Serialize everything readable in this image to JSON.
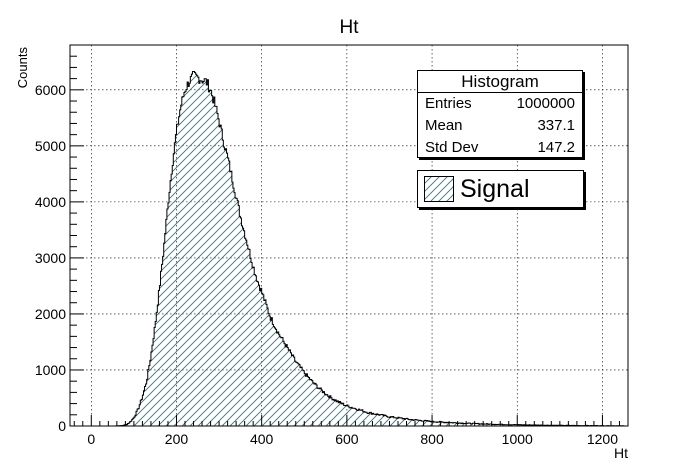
{
  "chart_data": {
    "type": "histogram",
    "title": "Ht",
    "xlabel": "Ht",
    "ylabel": "Counts",
    "xlim": [
      -50,
      1260
    ],
    "ylim": [
      0,
      6800
    ],
    "xticks": [
      0,
      200,
      400,
      600,
      800,
      1000,
      1200
    ],
    "yticks": [
      0,
      1000,
      2000,
      3000,
      4000,
      5000,
      6000
    ],
    "grid": true,
    "fill_style": "diagonal hatch",
    "line_color": "#000000",
    "hatch_color": "#2e7a80",
    "series": [
      {
        "name": "Signal",
        "x": [
          50,
          70,
          80,
          90,
          100,
          110,
          120,
          130,
          140,
          150,
          160,
          170,
          180,
          190,
          200,
          210,
          220,
          230,
          240,
          250,
          260,
          270,
          280,
          290,
          300,
          310,
          320,
          330,
          340,
          350,
          360,
          370,
          380,
          390,
          400,
          420,
          440,
          460,
          480,
          500,
          520,
          540,
          560,
          580,
          600,
          650,
          700,
          750,
          800,
          850,
          900,
          950,
          1000,
          1050,
          1100,
          1150,
          1200,
          1250
        ],
        "y": [
          0,
          5,
          20,
          60,
          150,
          300,
          520,
          800,
          1250,
          1800,
          2450,
          3150,
          3950,
          4650,
          5250,
          5700,
          6000,
          6150,
          6250,
          6220,
          6180,
          6150,
          6000,
          5750,
          5450,
          5100,
          4800,
          4450,
          4100,
          3750,
          3450,
          3150,
          2850,
          2600,
          2400,
          1950,
          1650,
          1400,
          1150,
          950,
          780,
          640,
          520,
          430,
          360,
          240,
          165,
          115,
          80,
          58,
          42,
          30,
          22,
          16,
          11,
          8,
          5,
          3
        ]
      }
    ]
  },
  "stats": {
    "title": "Histogram",
    "rows": [
      {
        "label": "Entries",
        "value": "1000000"
      },
      {
        "label": "Mean",
        "value": "337.1"
      },
      {
        "label": "Std Dev",
        "value": "147.2"
      }
    ]
  },
  "legend": {
    "label": "Signal"
  }
}
